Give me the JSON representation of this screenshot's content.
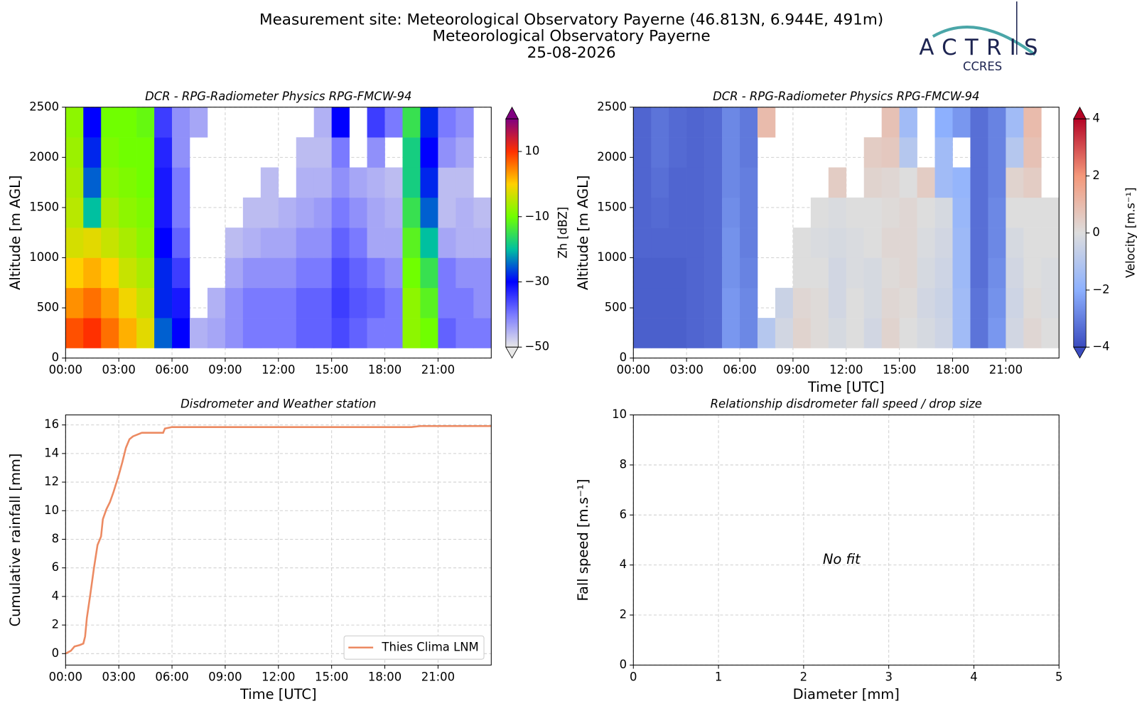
{
  "header": {
    "title_lines": [
      "Measurement site: Meteorological Observatory Payerne (46.813N, 6.944E, 491m)",
      "Meteorological Observatory Payerne",
      "25-08-2026"
    ]
  },
  "logo": {
    "name": "ACTRIS",
    "sub": "CCRES"
  },
  "chart_data": [
    {
      "type": "heatmap",
      "title": "DCR - RPG-Radiometer Physics RPG-FMCW-94",
      "y_label": "Altitude [m AGL]",
      "x_bins": [
        0,
        1,
        2,
        3,
        4,
        5,
        6,
        7,
        8,
        9,
        10,
        11,
        12,
        13,
        14,
        15,
        16,
        17,
        18,
        19,
        20,
        21,
        22,
        23,
        24
      ],
      "y_bins": [
        100,
        400,
        700,
        1000,
        1300,
        1600,
        1900,
        2200,
        2500
      ],
      "values": [
        [
          8,
          10,
          6,
          2,
          -2,
          -25,
          -30,
          -45,
          -44,
          -42,
          -40,
          -40,
          -40,
          -38,
          -38,
          -36,
          -38,
          -40,
          -40,
          -8,
          -10,
          -38,
          -40,
          -40
        ],
        [
          4,
          6,
          3,
          -1,
          -4,
          -28,
          -32,
          null,
          -45,
          -42,
          -40,
          -40,
          -40,
          -38,
          -38,
          -35,
          -37,
          -38,
          -40,
          -8,
          -12,
          -40,
          -40,
          -42
        ],
        [
          0,
          2,
          0,
          -4,
          -6,
          -28,
          -35,
          null,
          null,
          -44,
          -42,
          -42,
          -42,
          -40,
          -40,
          -36,
          -38,
          -40,
          -42,
          -10,
          -15,
          -40,
          -42,
          -42
        ],
        [
          -3,
          -2,
          -4,
          -6,
          -8,
          -30,
          -38,
          null,
          null,
          -46,
          -45,
          -44,
          -44,
          -42,
          -42,
          -38,
          -40,
          -44,
          -44,
          -12,
          -20,
          -44,
          -45,
          -45
        ],
        [
          -5,
          -20,
          -6,
          -8,
          -9,
          -32,
          -40,
          null,
          null,
          null,
          -46,
          -46,
          -45,
          -44,
          -43,
          -40,
          -42,
          -44,
          -45,
          -15,
          -25,
          -46,
          -45,
          -46
        ],
        [
          -6,
          -25,
          -8,
          -9,
          -10,
          -32,
          -40,
          null,
          null,
          null,
          null,
          -46,
          null,
          -45,
          -45,
          -42,
          -44,
          -45,
          -46,
          -18,
          -28,
          -46,
          -46,
          null
        ],
        [
          -7,
          -28,
          -9,
          -10,
          -10,
          -33,
          -42,
          null,
          null,
          null,
          null,
          null,
          null,
          -46,
          -46,
          -40,
          null,
          -42,
          null,
          -18,
          -30,
          -42,
          -44,
          null
        ],
        [
          -8,
          -30,
          -10,
          -10,
          -11,
          -35,
          -42,
          -44,
          null,
          null,
          null,
          null,
          null,
          null,
          -45,
          -30,
          null,
          -35,
          -40,
          -15,
          -28,
          -40,
          -42,
          null
        ]
      ],
      "xlim": [
        0,
        24
      ],
      "xticks": [
        {
          "value": 0,
          "label": "00:00"
        },
        {
          "value": 3,
          "label": "03:00"
        },
        {
          "value": 6,
          "label": "06:00"
        },
        {
          "value": 9,
          "label": "09:00"
        },
        {
          "value": 12,
          "label": "12:00"
        },
        {
          "value": 15,
          "label": "15:00"
        },
        {
          "value": 18,
          "label": "18:00"
        },
        {
          "value": 21,
          "label": "21:00"
        }
      ],
      "ylim": [
        0,
        2500
      ],
      "yticks": [
        0,
        500,
        1000,
        1500,
        2000,
        2500
      ],
      "grid": true,
      "colorbar": {
        "label": "Zh [dBZ]",
        "lim": [
          -50,
          20
        ],
        "ticks": [
          {
            "value": -50,
            "label": "−50"
          },
          {
            "value": -30,
            "label": "−30"
          },
          {
            "value": -10,
            "label": "−10"
          },
          10
        ],
        "colors": [
          "#e8e8e8",
          "#7a7aff",
          "#0000ff",
          "#00c0a0",
          "#70ff00",
          "#ffd000",
          "#ff3000",
          "#800080"
        ]
      }
    },
    {
      "type": "heatmap",
      "title": "DCR - RPG-Radiometer Physics RPG-FMCW-94",
      "y_label": "Altitude [m AGL]",
      "x_label": "Time [UTC]",
      "x_bins": [
        0,
        1,
        2,
        3,
        4,
        5,
        6,
        7,
        8,
        9,
        10,
        11,
        12,
        13,
        14,
        15,
        16,
        17,
        18,
        19,
        20,
        21,
        22,
        23,
        24
      ],
      "y_bins": [
        100,
        400,
        700,
        1000,
        1300,
        1600,
        1900,
        2200,
        2500
      ],
      "values": [
        [
          -3.6,
          -3.6,
          -3.6,
          -3.5,
          -3.4,
          -2.5,
          -2.8,
          -1.0,
          -0.3,
          0.3,
          0.1,
          -0.2,
          0,
          -0.3,
          0.3,
          0,
          -0.2,
          -0.4,
          -1.5,
          -3.2,
          -2.5,
          -0.3,
          0.2,
          0
        ],
        [
          -3.6,
          -3.6,
          -3.6,
          -3.5,
          -3.4,
          -2.5,
          -2.8,
          null,
          -0.5,
          0.2,
          0.1,
          -0.3,
          0,
          -0.2,
          0.2,
          0.1,
          -0.3,
          -0.5,
          -1.5,
          -3.2,
          -2.6,
          -0.4,
          0.1,
          -0.1
        ],
        [
          -3.6,
          -3.6,
          -3.6,
          -3.5,
          -3.4,
          -2.6,
          -2.9,
          null,
          null,
          0,
          0,
          -0.3,
          -0.1,
          -0.2,
          0.1,
          0.2,
          -0.2,
          -0.4,
          -1.6,
          -3.3,
          -2.7,
          -0.3,
          0,
          -0.1
        ],
        [
          -3.5,
          -3.5,
          -3.5,
          -3.5,
          -3.4,
          -2.6,
          -3.0,
          null,
          null,
          0,
          -0.1,
          -0.2,
          -0.1,
          0,
          0.2,
          0.2,
          -0.1,
          -0.3,
          -1.6,
          -3.3,
          -2.8,
          -0.2,
          0,
          0
        ],
        [
          -3.5,
          -3.4,
          -3.5,
          -3.5,
          -3.4,
          -2.7,
          -3.0,
          null,
          null,
          null,
          0,
          -0.1,
          0,
          0,
          0.1,
          0.2,
          0,
          -0.2,
          -1.7,
          -3.3,
          -2.8,
          0,
          0,
          0
        ],
        [
          -3.5,
          -3.3,
          -3.5,
          -3.5,
          -3.4,
          -2.8,
          -3.0,
          null,
          null,
          null,
          null,
          0.5,
          null,
          0.3,
          0.2,
          0,
          0.5,
          -1.5,
          -1.8,
          -3.3,
          -2.9,
          0.3,
          0.5,
          null
        ],
        [
          -3.5,
          -3.2,
          -3.4,
          -3.5,
          -3.4,
          -2.8,
          -3.1,
          null,
          null,
          null,
          null,
          null,
          null,
          0.5,
          0.6,
          -1.0,
          null,
          -1.5,
          null,
          -3.3,
          -2.9,
          -1.0,
          0.8,
          null
        ],
        [
          -3.5,
          -3.2,
          -3.4,
          -3.5,
          -3.4,
          -2.8,
          -3.1,
          1.0,
          null,
          null,
          null,
          null,
          null,
          null,
          0.8,
          -1.5,
          null,
          -2.0,
          -2.5,
          -3.3,
          -2.9,
          -1.5,
          1.0,
          null
        ]
      ],
      "xlim": [
        0,
        24
      ],
      "xticks": [
        {
          "value": 0,
          "label": "00:00"
        },
        {
          "value": 3,
          "label": "03:00"
        },
        {
          "value": 6,
          "label": "06:00"
        },
        {
          "value": 9,
          "label": "09:00"
        },
        {
          "value": 12,
          "label": "12:00"
        },
        {
          "value": 15,
          "label": "15:00"
        },
        {
          "value": 18,
          "label": "18:00"
        },
        {
          "value": 21,
          "label": "21:00"
        }
      ],
      "ylim": [
        0,
        2500
      ],
      "yticks": [
        0,
        500,
        1000,
        1500,
        2000,
        2500
      ],
      "grid": true,
      "colorbar": {
        "label": "Velocity [m.s⁻¹]",
        "lim": [
          -4,
          4
        ],
        "ticks": [
          {
            "value": -4,
            "label": "−4"
          },
          {
            "value": -2,
            "label": "−2"
          },
          0,
          2,
          4
        ],
        "colors": [
          "#3b4cc0",
          "#8db0fe",
          "#dddddd",
          "#f4987a",
          "#b40426"
        ]
      }
    },
    {
      "type": "line",
      "title": "Disdrometer and Weather station",
      "y_label": "Cumulative rainfall [mm]",
      "x_label": "Time [UTC]",
      "x": [
        0,
        0.3,
        0.5,
        0.8,
        1.0,
        1.1,
        1.2,
        1.4,
        1.6,
        1.8,
        2.0,
        2.1,
        2.3,
        2.5,
        2.7,
        3.0,
        3.2,
        3.4,
        3.6,
        3.8,
        4.0,
        4.3,
        4.6,
        5.0,
        5.5,
        5.6,
        6.0,
        8,
        12,
        16,
        19.5,
        20,
        24
      ],
      "series": [
        {
          "name": "Thies Clima LNM",
          "color": "#ec8a62",
          "values": [
            0,
            0.2,
            0.5,
            0.6,
            0.7,
            1.2,
            2.5,
            4.2,
            6.0,
            7.6,
            8.2,
            9.4,
            10.1,
            10.6,
            11.3,
            12.5,
            13.4,
            14.4,
            15.0,
            15.2,
            15.3,
            15.45,
            15.45,
            15.45,
            15.45,
            15.75,
            15.85,
            15.85,
            15.85,
            15.85,
            15.85,
            15.92,
            15.92
          ]
        }
      ],
      "xlim": [
        0,
        24
      ],
      "xticks": [
        {
          "value": 0,
          "label": "00:00"
        },
        {
          "value": 3,
          "label": "03:00"
        },
        {
          "value": 6,
          "label": "06:00"
        },
        {
          "value": 9,
          "label": "09:00"
        },
        {
          "value": 12,
          "label": "12:00"
        },
        {
          "value": 15,
          "label": "15:00"
        },
        {
          "value": 18,
          "label": "18:00"
        },
        {
          "value": 21,
          "label": "21:00"
        }
      ],
      "ylim": [
        -0.8,
        16.7
      ],
      "yticks": [
        0,
        2,
        4,
        6,
        8,
        10,
        12,
        14,
        16
      ],
      "grid": true,
      "legend": "lower right"
    },
    {
      "type": "scatter",
      "title": "Relationship disdrometer fall speed / drop size",
      "y_label": "Fall speed [m.s⁻¹]",
      "x_label": "Diameter [mm]",
      "annotation": "No fit",
      "xlim": [
        0,
        5
      ],
      "xticks": [
        0,
        1,
        2,
        3,
        4,
        5
      ],
      "ylim": [
        0,
        10
      ],
      "yticks": [
        0,
        2,
        4,
        6,
        8,
        10
      ],
      "grid": true
    }
  ]
}
